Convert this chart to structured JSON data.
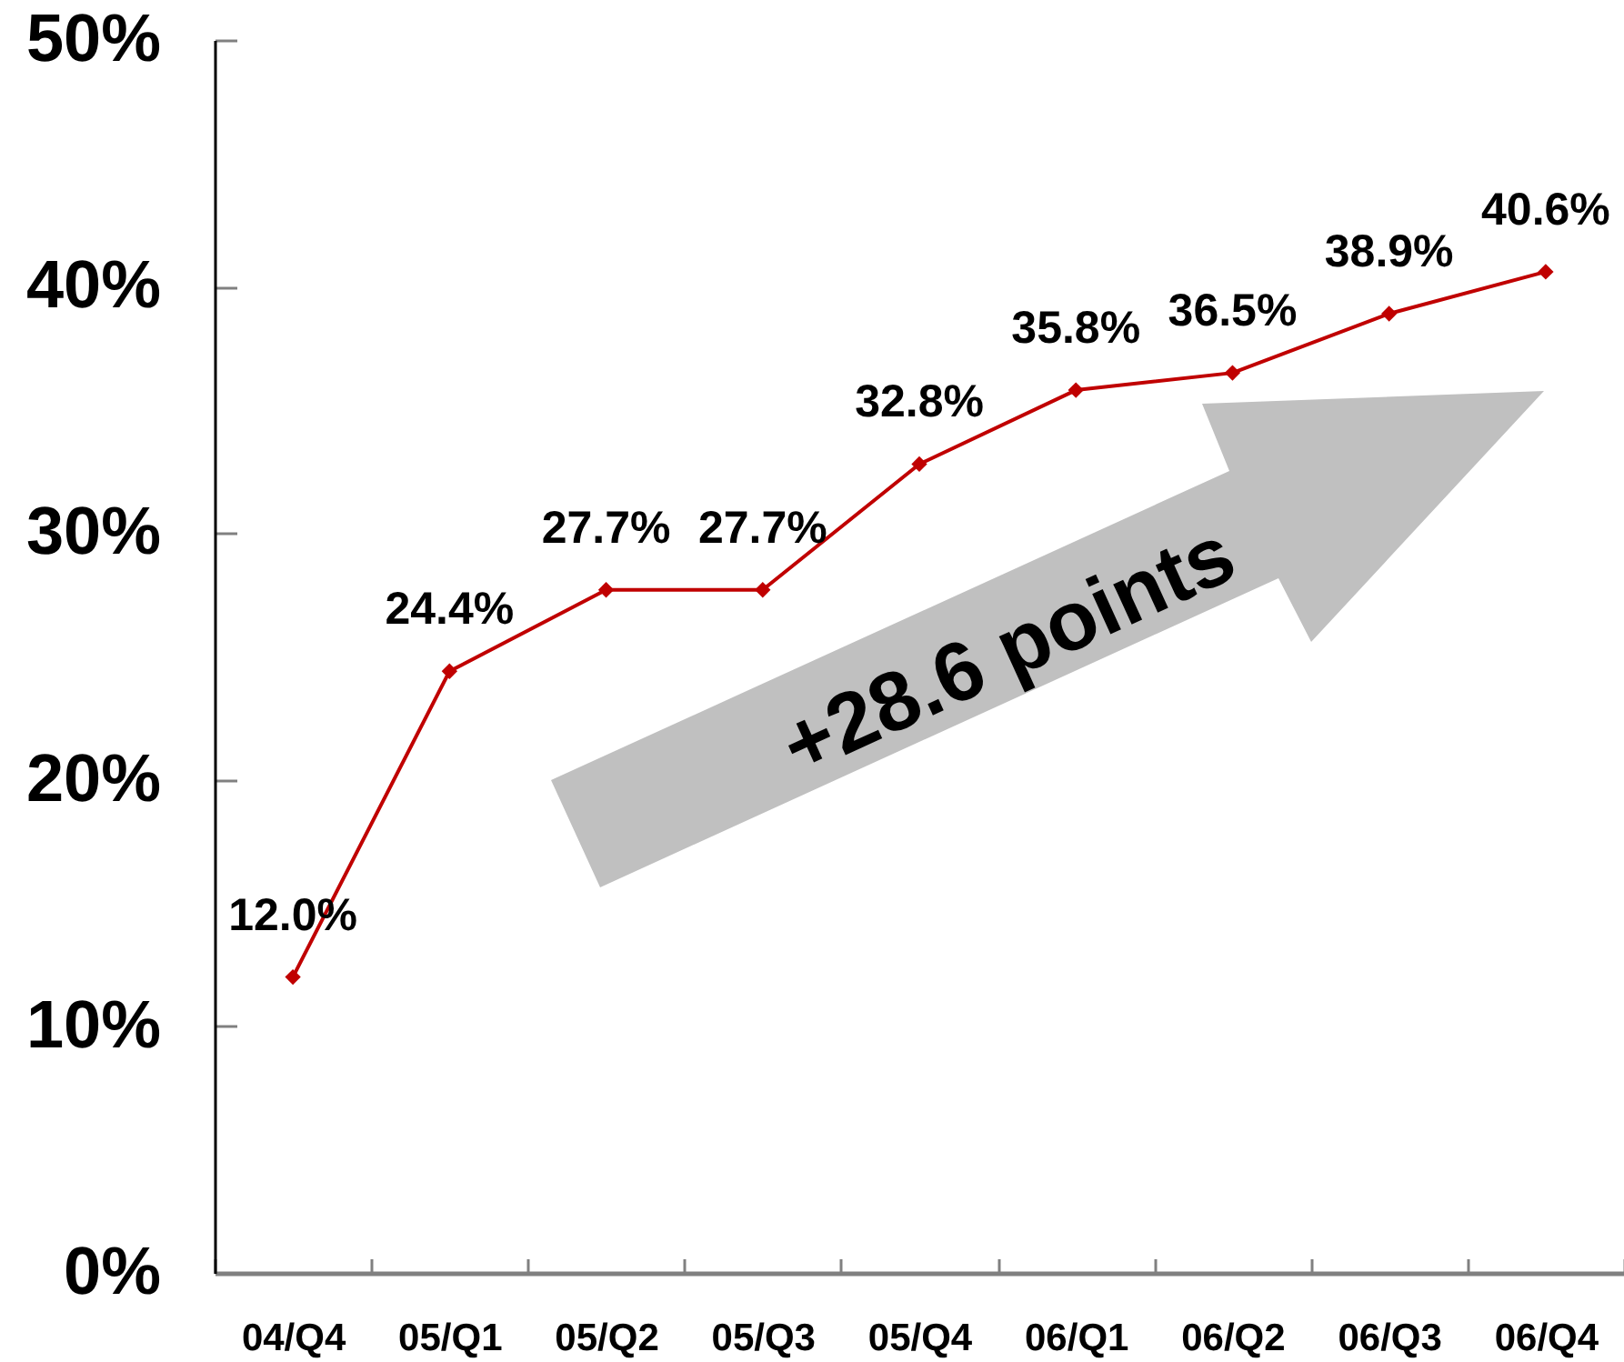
{
  "chart_data": {
    "type": "line",
    "categories": [
      "04/Q4",
      "05/Q1",
      "05/Q2",
      "05/Q3",
      "05/Q4",
      "06/Q1",
      "06/Q2",
      "06/Q3",
      "06/Q4"
    ],
    "values": [
      12.0,
      24.4,
      27.7,
      27.7,
      32.8,
      35.8,
      36.5,
      38.9,
      40.6
    ],
    "value_labels": [
      "12.0%",
      "24.4%",
      "27.7%",
      "27.7%",
      "32.8%",
      "35.8%",
      "36.5%",
      "38.9%",
      "40.6%"
    ],
    "color": "#c00000",
    "marker": "diamond",
    "line_style": "solid",
    "ylim": [
      0,
      50
    ],
    "yticks": [
      {
        "value": 0,
        "label": "0%"
      },
      {
        "value": 10,
        "label": "10%"
      },
      {
        "value": 20,
        "label": "20%"
      },
      {
        "value": 30,
        "label": "30%"
      },
      {
        "value": 40,
        "label": "40%"
      },
      {
        "value": 50,
        "label": "50%"
      }
    ],
    "annotations": [
      "+28.6 points"
    ]
  }
}
